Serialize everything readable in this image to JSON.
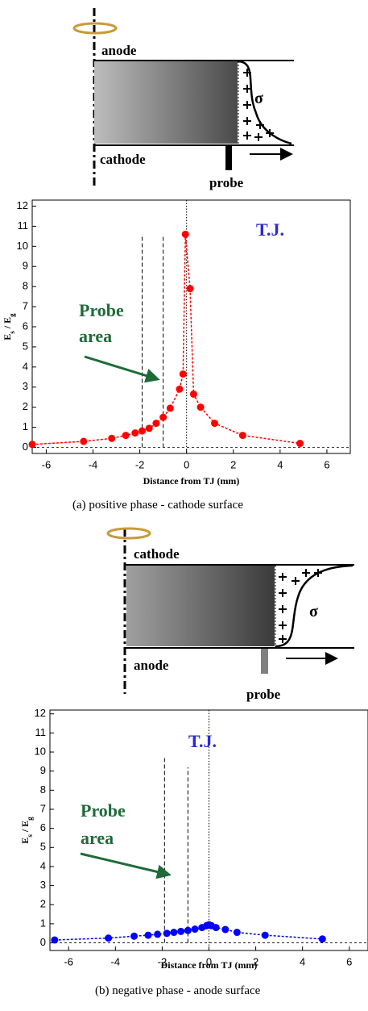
{
  "diagrams": [
    {
      "top_label": "anode",
      "bottom_label": "cathode",
      "probe_label": "probe",
      "sigma": "σ"
    },
    {
      "top_label": "cathode",
      "bottom_label": "anode",
      "probe_label": "probe",
      "sigma": "σ"
    }
  ],
  "chart_data": [
    {
      "type": "line",
      "caption": "(a)    positive phase - cathode surface",
      "xlabel": "Distance from TJ (mm)",
      "ylabel_parts": [
        "E",
        "s",
        " / E",
        "g"
      ],
      "annotation_tj": "T.J.",
      "annotation_probe": [
        "Probe",
        "area"
      ],
      "color": "#ff0000",
      "x": [
        -6.6,
        -4.4,
        -3.2,
        -2.6,
        -2.2,
        -1.9,
        -1.6,
        -1.3,
        -1.0,
        -0.7,
        -0.3,
        -0.15,
        -0.05,
        0.15,
        0.3,
        0.6,
        1.2,
        2.4,
        4.85
      ],
      "values": [
        0.15,
        0.3,
        0.45,
        0.6,
        0.72,
        0.82,
        0.95,
        1.2,
        1.5,
        1.95,
        2.9,
        3.65,
        10.6,
        7.9,
        2.65,
        2.0,
        1.2,
        0.6,
        0.2
      ],
      "reference_lines": [
        {
          "x": -1.9,
          "top": 10.6
        },
        {
          "x": -1.0,
          "top": 10.6
        }
      ],
      "xlim": [
        -6.6,
        7
      ],
      "ylim": [
        -0.3,
        12.3
      ],
      "xticks": [
        -6,
        -4,
        -2,
        0,
        2,
        4,
        6
      ],
      "yticks": [
        0,
        1,
        2,
        3,
        4,
        5,
        6,
        7,
        8,
        9,
        10,
        11,
        12
      ]
    },
    {
      "type": "line",
      "caption": "(b) negative phase - anode surface",
      "xlabel": "Distance from TJ (mm)",
      "ylabel_parts": [
        "E",
        "s",
        " / E",
        "g"
      ],
      "annotation_tj": "T.J.",
      "annotation_probe": [
        "Probe",
        "area"
      ],
      "color": "#0000ff",
      "x": [
        -6.6,
        -4.3,
        -3.2,
        -2.6,
        -2.2,
        -1.8,
        -1.5,
        -1.2,
        -0.9,
        -0.6,
        -0.3,
        -0.1,
        0,
        0.1,
        0.3,
        0.7,
        1.2,
        2.4,
        4.85
      ],
      "values": [
        0.15,
        0.25,
        0.35,
        0.4,
        0.45,
        0.5,
        0.55,
        0.6,
        0.65,
        0.72,
        0.8,
        0.9,
        0.95,
        0.9,
        0.8,
        0.7,
        0.55,
        0.4,
        0.2
      ],
      "reference_lines": [
        {
          "x": -1.9,
          "top": 9.8
        },
        {
          "x": -0.9,
          "top": 9.2
        }
      ],
      "xlim": [
        -6.8,
        6.8
      ],
      "ylim": [
        -0.4,
        12.2
      ],
      "xticks": [
        -6,
        -4,
        -2,
        0,
        2,
        4,
        6
      ],
      "yticks": [
        0,
        1,
        2,
        3,
        4,
        5,
        6,
        7,
        8,
        9,
        10,
        11,
        12
      ]
    }
  ]
}
